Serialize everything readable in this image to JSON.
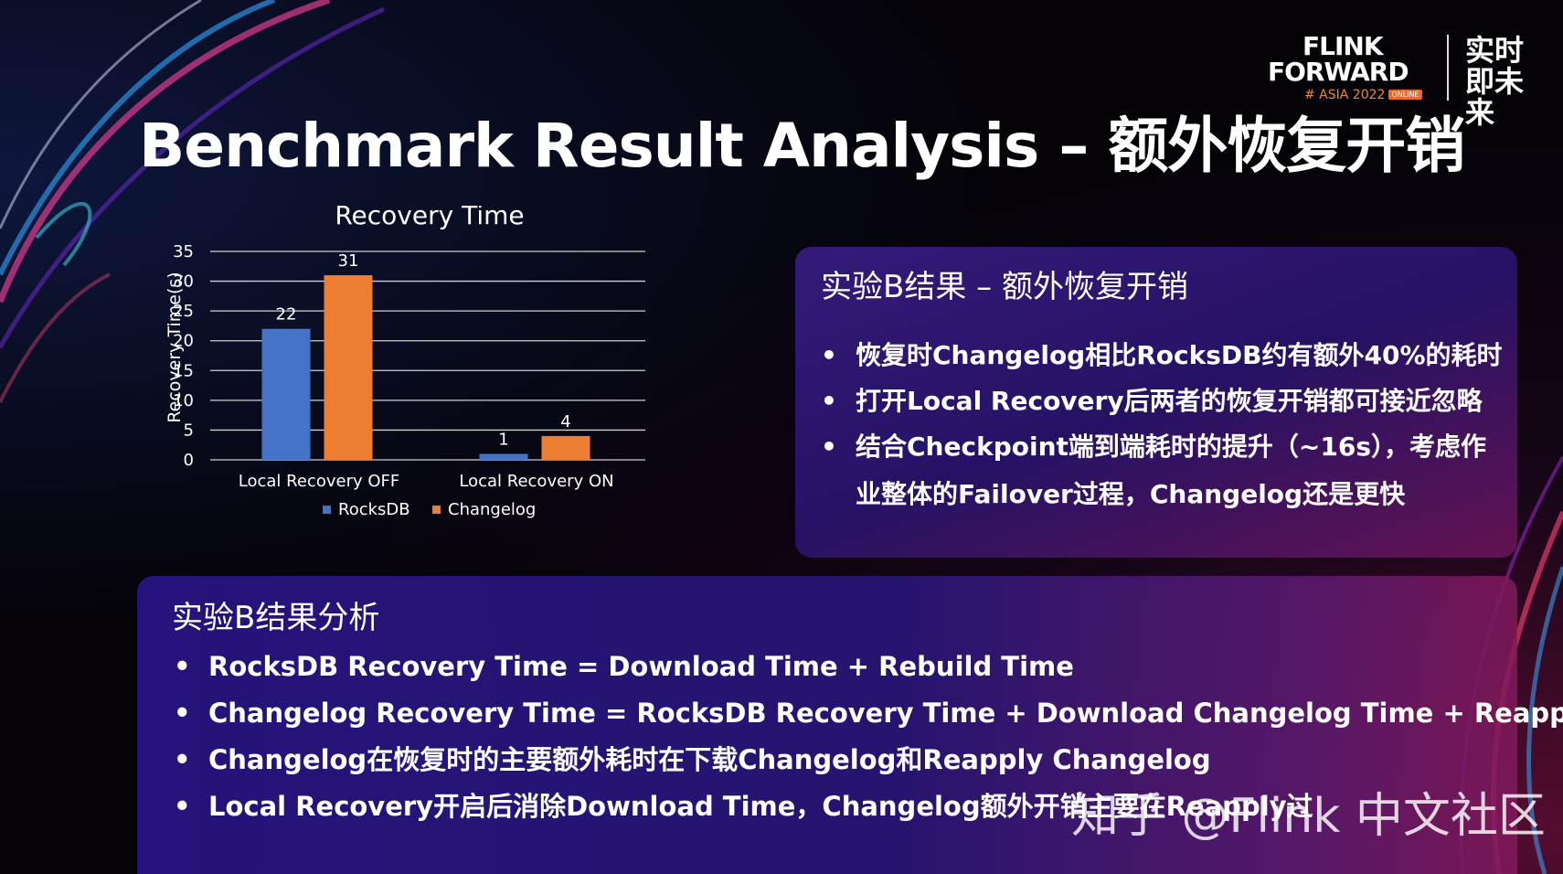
{
  "logo": {
    "line1": "FLINK",
    "line2": "FORWARD",
    "line3": "# ASIA 2022",
    "badge": "ONLINE",
    "cn": "实时即未来"
  },
  "title": "Benchmark Result Analysis – 额外恢复开销",
  "chart_data": {
    "type": "bar",
    "title": "Recovery Time",
    "ylabel": "Recovery Time(s)",
    "xlabel": "",
    "categories": [
      "Local Recovery OFF",
      "Local Recovery ON"
    ],
    "series": [
      {
        "name": "RocksDB",
        "values": [
          22,
          1
        ],
        "labels": [
          "22",
          "1"
        ],
        "color": "#4472c4"
      },
      {
        "name": "Changelog",
        "values": [
          31,
          4
        ],
        "labels": [
          "31",
          "4"
        ],
        "color": "#ed7d31"
      }
    ],
    "ylim": [
      0,
      35
    ],
    "yticks": [
      0,
      5,
      10,
      15,
      20,
      25,
      30,
      35
    ],
    "ytick_labels": [
      "0",
      "5",
      "10",
      "15",
      "20",
      "25",
      "30",
      "35"
    ],
    "grid": true,
    "legend": "bottom"
  },
  "panel1": {
    "title": "实验B结果 – 额外恢复开销",
    "bullet_char": "•",
    "bullets": [
      "恢复时Changelog相比RocksDB约有额外40%的耗时",
      "打开Local Recovery后两者的恢复开销都可接近忽略",
      "结合Checkpoint端到端耗时的提升（~16s），考虑作"
    ],
    "continuation": "业整体的Failover过程，Changelog还是更快"
  },
  "panel2": {
    "title": "实验B结果分析",
    "bullet_char": "•",
    "bullets": [
      "RocksDB Recovery Time = Download Time + Rebuild Time",
      "Changelog Recovery Time = RocksDB Recovery Time + Download Changelog Time + Reapply Time",
      "Changelog在恢复时的主要额外耗时在下载Changelog和Reapply Changelog",
      "Local Recovery开启后消除Download Time，Changelog额外开销主要在Reapply过"
    ]
  },
  "watermark": "知乎 @Flink 中文社区"
}
